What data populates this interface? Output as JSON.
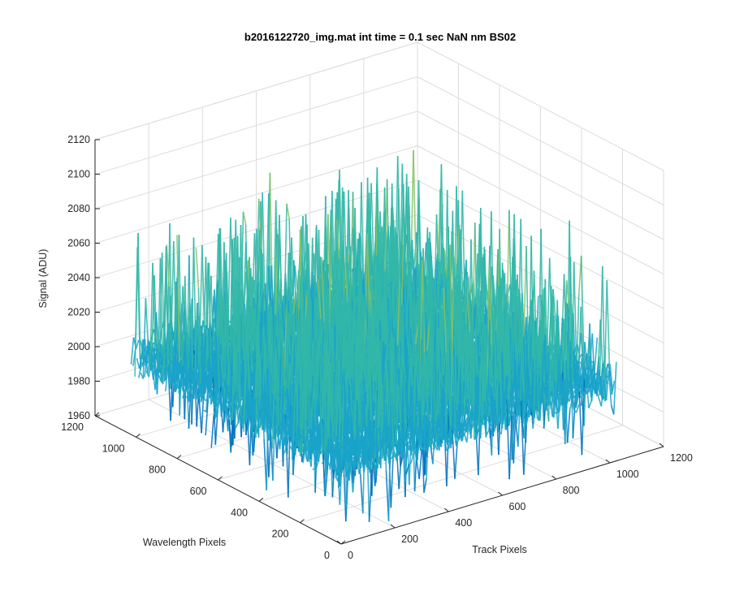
{
  "chart_data": {
    "type": "surface",
    "title": "b2016122720_img.mat int time = 0.1 sec  NaN nm BS02",
    "xlabel": "Track Pixels",
    "ylabel": "Wavelength Pixels",
    "zlabel": "Signal (ADU)",
    "xlim": [
      0,
      1200
    ],
    "ylim": [
      0,
      1200
    ],
    "zlim": [
      1960,
      2120
    ],
    "x_ticks": [
      "0",
      "200",
      "400",
      "600",
      "800",
      "1000",
      "1200"
    ],
    "y_ticks": [
      "0",
      "200",
      "400",
      "600",
      "800",
      "1000",
      "1200"
    ],
    "z_ticks": [
      "1960",
      "1980",
      "2000",
      "2020",
      "2040",
      "2060",
      "2080",
      "2100",
      "2120"
    ],
    "surface_extent": {
      "x": [
        0,
        1024
      ],
      "y": [
        0,
        1024
      ]
    },
    "signal_baseline": 2005,
    "signal_noise_range": [
      1965,
      2105
    ],
    "grid": true,
    "colormap": [
      "#0072bd",
      "#1aa3c9",
      "#33b7a8",
      "#86c266",
      "#d6c84a"
    ]
  }
}
